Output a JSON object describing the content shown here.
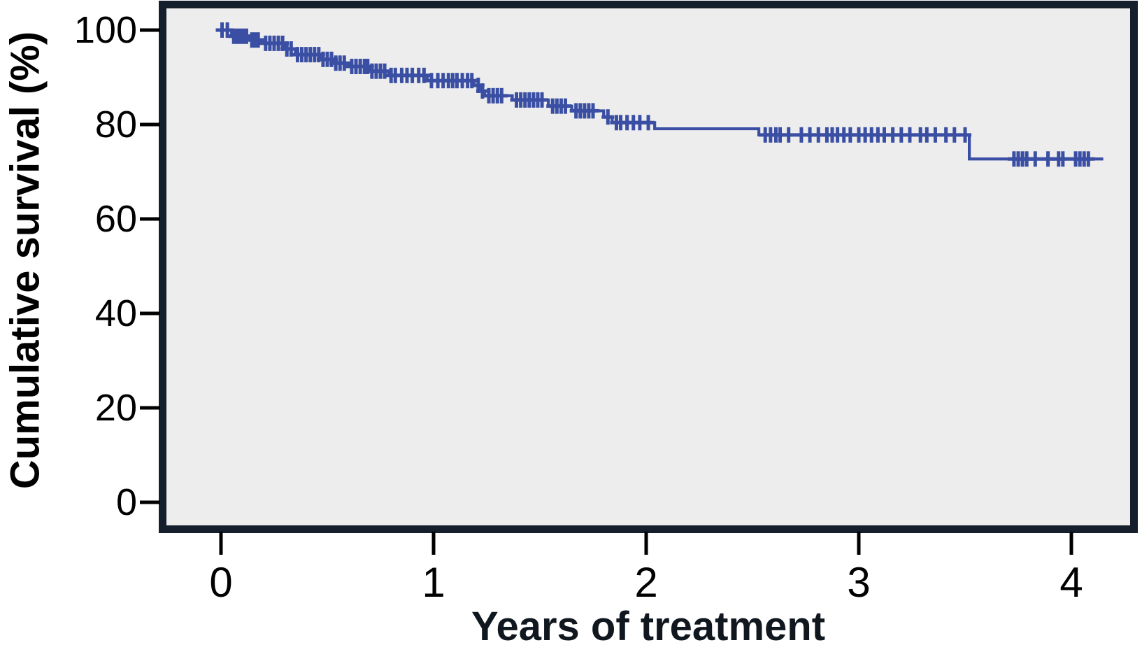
{
  "figure": {
    "kind": "kaplan-meier-survival-plot"
  },
  "chart_data": {
    "type": "line",
    "subtype": "step-survival-kaplan-meier",
    "title": "",
    "xlabel": "Years of treatment",
    "ylabel": "Cumulative survival (%)",
    "xlim": [
      0,
      4.3
    ],
    "ylim": [
      0,
      105
    ],
    "x_ticks": [
      0,
      1,
      2,
      3,
      4
    ],
    "y_ticks": [
      0,
      20,
      40,
      60,
      80,
      100
    ],
    "grid": false,
    "legend": null,
    "plot_background": "#ededed",
    "frame_color": "#141e2c",
    "series": [
      {
        "name": "Cumulative survival",
        "color": "#3a4fa4",
        "steps": [
          {
            "t": 0.0,
            "s": 100.0
          },
          {
            "t": 0.05,
            "s": 98.7
          },
          {
            "t": 0.13,
            "s": 97.9
          },
          {
            "t": 0.2,
            "s": 97.2
          },
          {
            "t": 0.3,
            "s": 96.0
          },
          {
            "t": 0.35,
            "s": 94.8
          },
          {
            "t": 0.47,
            "s": 93.8
          },
          {
            "t": 0.53,
            "s": 93.0
          },
          {
            "t": 0.61,
            "s": 92.3
          },
          {
            "t": 0.7,
            "s": 91.3
          },
          {
            "t": 0.79,
            "s": 90.4
          },
          {
            "t": 0.97,
            "s": 89.3
          },
          {
            "t": 1.19,
            "s": 88.3
          },
          {
            "t": 1.22,
            "s": 87.1
          },
          {
            "t": 1.24,
            "s": 86.1
          },
          {
            "t": 1.37,
            "s": 85.2
          },
          {
            "t": 1.54,
            "s": 83.9
          },
          {
            "t": 1.65,
            "s": 82.9
          },
          {
            "t": 1.8,
            "s": 81.6
          },
          {
            "t": 1.84,
            "s": 80.4
          },
          {
            "t": 2.04,
            "s": 79.1
          },
          {
            "t": 2.53,
            "s": 77.8
          },
          {
            "t": 3.52,
            "s": 72.7
          }
        ],
        "end_t": 4.15,
        "censored_t": [
          0.005,
          0.03,
          0.06,
          0.075,
          0.09,
          0.105,
          0.12,
          0.145,
          0.16,
          0.175,
          0.21,
          0.23,
          0.25,
          0.27,
          0.29,
          0.31,
          0.33,
          0.36,
          0.38,
          0.4,
          0.42,
          0.44,
          0.46,
          0.48,
          0.5,
          0.52,
          0.54,
          0.56,
          0.58,
          0.615,
          0.635,
          0.655,
          0.675,
          0.69,
          0.71,
          0.73,
          0.75,
          0.77,
          0.8,
          0.82,
          0.85,
          0.875,
          0.9,
          0.93,
          0.955,
          0.99,
          1.02,
          1.045,
          1.07,
          1.09,
          1.11,
          1.135,
          1.16,
          1.18,
          1.21,
          1.23,
          1.26,
          1.28,
          1.3,
          1.32,
          1.39,
          1.41,
          1.43,
          1.45,
          1.47,
          1.49,
          1.51,
          1.56,
          1.58,
          1.6,
          1.62,
          1.67,
          1.69,
          1.71,
          1.73,
          1.75,
          1.82,
          1.86,
          1.88,
          1.91,
          1.94,
          1.97,
          2.01,
          2.56,
          2.585,
          2.61,
          2.63,
          2.67,
          2.73,
          2.77,
          2.81,
          2.85,
          2.875,
          2.9,
          2.93,
          2.96,
          3.0,
          3.03,
          3.06,
          3.09,
          3.12,
          3.16,
          3.2,
          3.24,
          3.29,
          3.32,
          3.36,
          3.41,
          3.45,
          3.5,
          3.73,
          3.75,
          3.77,
          3.79,
          3.83,
          3.89,
          3.94,
          3.96,
          4.02,
          4.04,
          4.06,
          4.08
        ]
      }
    ]
  }
}
